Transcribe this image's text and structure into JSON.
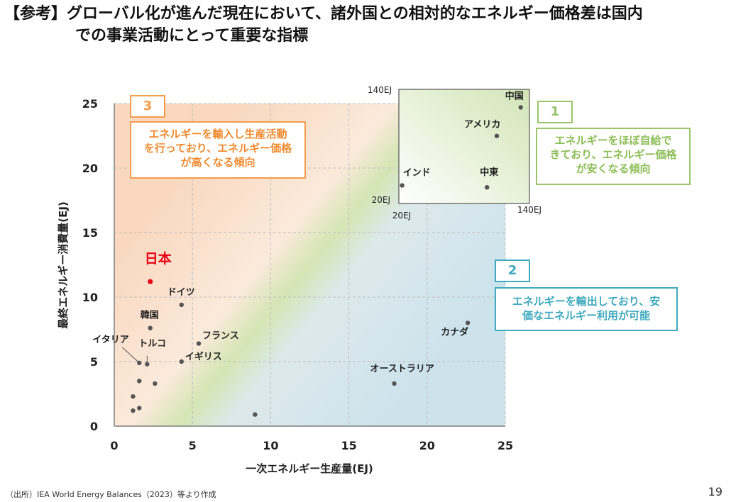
{
  "title": {
    "line1": "【参考】グローバル化が進んだ現在において、諸外国との相対的なエネルギー価格差は国内",
    "line2": "での事業活動にとって重要な指標"
  },
  "chart_data": {
    "type": "scatter",
    "xlabel": "一次エネルギー生産量(EJ)",
    "ylabel": "最終エネルギー消費量(EJ)",
    "xlim": [
      0,
      25
    ],
    "ylim": [
      0,
      25
    ],
    "xticks": [
      "0",
      "5",
      "10",
      "15",
      "20",
      "25"
    ],
    "yticks": [
      "0",
      "5",
      "10",
      "15",
      "20",
      "25"
    ],
    "grid": true,
    "points": [
      {
        "label": "日本",
        "x": 2.3,
        "y": 11.2,
        "color": "#e60012"
      },
      {
        "label": "ドイツ",
        "x": 4.3,
        "y": 9.4
      },
      {
        "label": "韓国",
        "x": 2.3,
        "y": 7.6
      },
      {
        "label": "フランス",
        "x": 5.4,
        "y": 6.4
      },
      {
        "label": "イタリア",
        "x": 1.6,
        "y": 4.9
      },
      {
        "label": "トルコ",
        "x": 2.1,
        "y": 4.8
      },
      {
        "label": "イギリス",
        "x": 4.3,
        "y": 5.0
      },
      {
        "label": "カナダ",
        "x": 22.6,
        "y": 8.0
      },
      {
        "label": "オーストラリア",
        "x": 17.9,
        "y": 3.3
      },
      {
        "label": "",
        "x": 1.6,
        "y": 3.5
      },
      {
        "label": "",
        "x": 2.6,
        "y": 3.3
      },
      {
        "label": "",
        "x": 1.2,
        "y": 2.3
      },
      {
        "label": "",
        "x": 1.6,
        "y": 1.4
      },
      {
        "label": "",
        "x": 1.2,
        "y": 1.2
      },
      {
        "label": "",
        "x": 9.0,
        "y": 0.9
      }
    ],
    "inset": {
      "xlim": [
        20,
        140
      ],
      "ylim": [
        20,
        140
      ],
      "x_min_label": "20EJ",
      "x_max_label": "140EJ",
      "y_min_label": "20EJ",
      "y_max_label": "140EJ",
      "points": [
        {
          "label": "中国",
          "x": 132,
          "y": 121
        },
        {
          "label": "アメリカ",
          "x": 110,
          "y": 91
        },
        {
          "label": "インド",
          "x": 23,
          "y": 39
        },
        {
          "label": "中東",
          "x": 101,
          "y": 37
        }
      ]
    },
    "annotations": [
      {
        "number": "1",
        "text": "エネルギーをほぼ自給できており、エネルギー価格が安くなる傾向",
        "lines": [
          "エネルギーをほぼ自給で",
          "きており、エネルギー価格",
          "が安くなる傾向"
        ],
        "color": "#9ac46b"
      },
      {
        "number": "2",
        "text": "エネルギーを輸出しており、安価なエネルギー利用が可能",
        "lines": [
          "エネルギーを輸出しており、安",
          "価なエネルギー利用が可能"
        ],
        "color": "#3fa9bd"
      },
      {
        "number": "3",
        "text": "エネルギーを輸入し生産活動を行っており、エネルギー価格が高くなる傾向",
        "lines": [
          "エネルギーを輸入し生産活動",
          "を行っており、エネルギー価格",
          "が高くなる傾向"
        ],
        "color": "#f39c4a"
      }
    ]
  },
  "source": "（出所）IEA World Energy Balances（2023）等より作成",
  "page_number": "19"
}
